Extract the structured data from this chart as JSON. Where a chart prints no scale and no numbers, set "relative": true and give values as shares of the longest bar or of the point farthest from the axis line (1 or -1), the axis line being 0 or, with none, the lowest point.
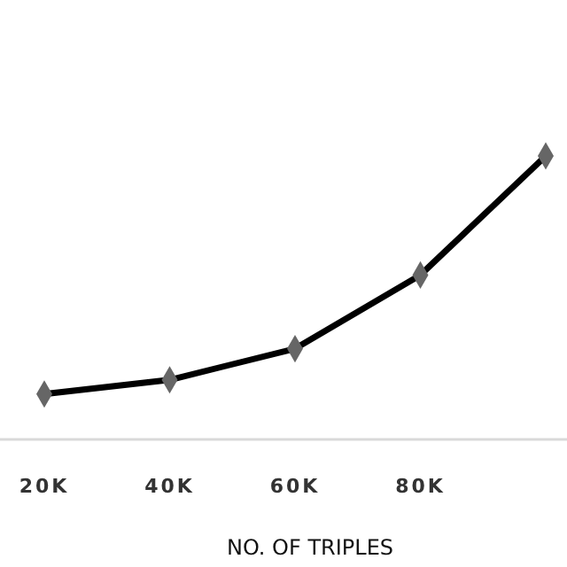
{
  "chart_data": {
    "type": "line",
    "relative": true,
    "xlabel": "NO. OF TRIPLES",
    "categories": [
      "20K",
      "40K",
      "60K",
      "80K",
      null
    ],
    "series": [
      {
        "color": "#000000",
        "values": [
          0.16,
          0.21,
          0.32,
          0.58,
          1
        ]
      }
    ],
    "marker": "diamond",
    "line_style": "solid"
  }
}
